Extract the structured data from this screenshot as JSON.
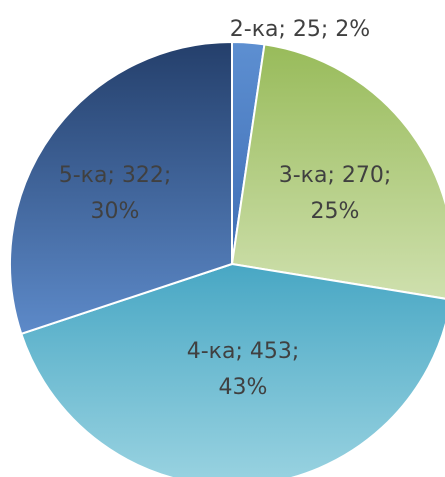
{
  "chart_data": {
    "type": "pie",
    "start_angle_deg": 0,
    "direction": "clockwise",
    "slices": [
      {
        "category": "2-ка",
        "value": 25,
        "percent": "2%",
        "label_line1": "2-ка; 25; 2%",
        "label_line2": "",
        "color_top": "#5d8fd1",
        "color_bottom": "#3f6eb5"
      },
      {
        "category": "3-ка",
        "value": 270,
        "percent": "25%",
        "label_line1": "3-ка; 270;",
        "label_line2": "25%",
        "color_top": "#98bb5a",
        "color_bottom": "#cfe0ae"
      },
      {
        "category": "4-ка",
        "value": 453,
        "percent": "43%",
        "label_line1": "4-ка; 453;",
        "label_line2": "43%",
        "color_top": "#48a7c4",
        "color_bottom": "#9ad3e1"
      },
      {
        "category": "5-ка",
        "value": 322,
        "percent": "30%",
        "label_line1": "5-ка; 322;",
        "label_line2": "30%",
        "color_top": "#243f6b",
        "color_bottom": "#5d8ac9"
      }
    ]
  }
}
